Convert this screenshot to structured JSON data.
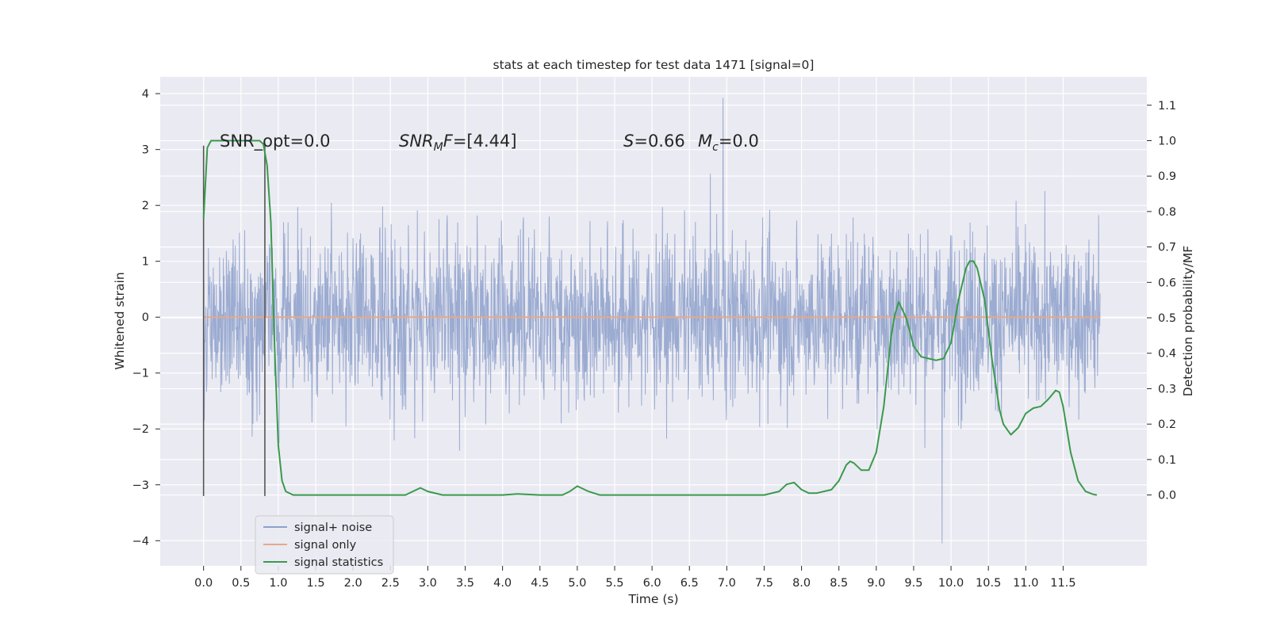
{
  "chart_data": {
    "type": "line",
    "title": "stats at each timestep for test data 1471 [signal=0]",
    "xlabel": "Time (s)",
    "ylabel_left": "Whitened strain",
    "ylabel_right": "Detection probability/MF",
    "xlim": [
      -0.58,
      12.62
    ],
    "ylim_left": [
      -4.45,
      4.3
    ],
    "ylim_right": [
      -0.2,
      1.18
    ],
    "x_ticks": [
      0.0,
      0.5,
      1.0,
      1.5,
      2.0,
      2.5,
      3.0,
      3.5,
      4.0,
      4.5,
      5.0,
      5.5,
      6.0,
      6.5,
      7.0,
      7.5,
      8.0,
      8.5,
      9.0,
      9.5,
      10.0,
      10.5,
      11.0,
      11.5
    ],
    "x_tick_labels": [
      "0.0",
      "0.5",
      "1.0",
      "1.5",
      "2.0",
      "2.5",
      "3.0",
      "3.5",
      "4.0",
      "4.5",
      "5.0",
      "5.5",
      "6.0",
      "6.5",
      "7.0",
      "7.5",
      "8.0",
      "8.5",
      "9.0",
      "9.5",
      "10.0",
      "10.5",
      "11.0",
      "11.5"
    ],
    "y_left_ticks": [
      -4,
      -3,
      -2,
      -1,
      0,
      1,
      2,
      3,
      4
    ],
    "y_left_tick_labels": [
      "−4",
      "−3",
      "−2",
      "−1",
      "0",
      "1",
      "2",
      "3",
      "4"
    ],
    "y_right_ticks": [
      0.0,
      0.1,
      0.2,
      0.3,
      0.4,
      0.5,
      0.6,
      0.7,
      0.8,
      0.9,
      1.0,
      1.1
    ],
    "y_right_tick_labels": [
      "0.0",
      "0.1",
      "0.2",
      "0.3",
      "0.4",
      "0.5",
      "0.6",
      "0.7",
      "0.8",
      "0.9",
      "1.0",
      "1.1"
    ],
    "grid": true,
    "legend_position": "lower-left",
    "series": [
      {
        "name": "signal+ noise",
        "axis": "left",
        "color": "#8da0cb",
        "kind": "noise-band",
        "duration": 12.0,
        "samples": 2400,
        "band_std": 0.75,
        "max": 3.92,
        "min": -4.05
      },
      {
        "name": "signal only",
        "axis": "left",
        "color": "#e6a88a",
        "x": [
          0.0,
          12.0
        ],
        "y": [
          0.0,
          0.0
        ]
      },
      {
        "name": "signal statistics",
        "axis": "right",
        "color": "#3a9a4c",
        "x": [
          0.0,
          0.05,
          0.1,
          0.15,
          0.2,
          0.3,
          0.5,
          0.7,
          0.75,
          0.8,
          0.85,
          0.9,
          0.95,
          1.0,
          1.05,
          1.1,
          1.2,
          1.5,
          2.0,
          2.5,
          2.7,
          2.8,
          2.9,
          3.0,
          3.2,
          3.5,
          4.0,
          4.2,
          4.5,
          4.8,
          4.9,
          5.0,
          5.05,
          5.15,
          5.3,
          5.5,
          5.8,
          6.0,
          6.5,
          7.0,
          7.5,
          7.7,
          7.8,
          7.9,
          8.0,
          8.1,
          8.2,
          8.4,
          8.5,
          8.6,
          8.65,
          8.7,
          8.8,
          8.9,
          9.0,
          9.1,
          9.2,
          9.25,
          9.3,
          9.4,
          9.5,
          9.6,
          9.7,
          9.8,
          9.9,
          10.0,
          10.1,
          10.2,
          10.25,
          10.3,
          10.35,
          10.45,
          10.55,
          10.65,
          10.7,
          10.8,
          10.9,
          11.0,
          11.1,
          11.2,
          11.3,
          11.4,
          11.45,
          11.5,
          11.6,
          11.7,
          11.8,
          11.9,
          11.95
        ],
        "y": [
          0.78,
          0.98,
          1.0,
          1.0,
          1.0,
          1.0,
          1.0,
          1.0,
          1.0,
          0.99,
          0.93,
          0.77,
          0.42,
          0.14,
          0.04,
          0.01,
          0.0,
          0.0,
          0.0,
          0.0,
          0.0,
          0.01,
          0.02,
          0.01,
          0.0,
          0.0,
          0.0,
          0.003,
          0.0,
          0.0,
          0.01,
          0.025,
          0.02,
          0.01,
          0.0,
          0.0,
          0.0,
          0.0,
          0.0,
          0.0,
          0.0,
          0.01,
          0.03,
          0.035,
          0.015,
          0.005,
          0.005,
          0.015,
          0.04,
          0.085,
          0.095,
          0.09,
          0.07,
          0.07,
          0.12,
          0.25,
          0.45,
          0.51,
          0.545,
          0.5,
          0.42,
          0.39,
          0.385,
          0.38,
          0.385,
          0.43,
          0.55,
          0.64,
          0.66,
          0.66,
          0.64,
          0.55,
          0.38,
          0.24,
          0.2,
          0.17,
          0.19,
          0.23,
          0.245,
          0.25,
          0.27,
          0.295,
          0.29,
          0.25,
          0.12,
          0.04,
          0.01,
          0.002,
          0.0
        ]
      }
    ],
    "vertical_markers": [
      0.0,
      0.82
    ],
    "vertical_marker_color": "#555555",
    "annotations": [
      {
        "text": "SNR_opt=0.0",
        "x": 0.2,
        "y": 3.0
      },
      {
        "text": "SNR_MF=[4.44]",
        "x": 2.62,
        "y": 3.0
      },
      {
        "text": "S=0.66",
        "x": 5.6,
        "y": 3.0
      },
      {
        "text": "M_c=0.0",
        "x": 6.6,
        "y": 3.0
      }
    ]
  },
  "colors": {
    "plot_background": "#eaeaf2",
    "grid": "#ffffff",
    "text": "#262626"
  }
}
